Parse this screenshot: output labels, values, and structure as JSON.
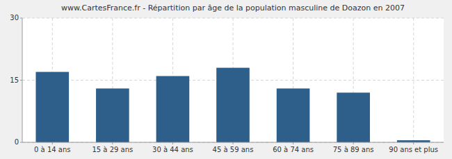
{
  "chart_data": {
    "type": "bar",
    "title": "www.CartesFrance.fr - Répartition par âge de la population masculine de Doazon en 2007",
    "categories": [
      "0 à 14 ans",
      "15 à 29 ans",
      "30 à 44 ans",
      "45 à 59 ans",
      "60 à 74 ans",
      "75 à 89 ans",
      "90 ans et plus"
    ],
    "values": [
      17,
      13,
      16,
      18,
      13,
      12,
      0.5
    ],
    "color": "#2e5f8a",
    "ylim": [
      0,
      30
    ],
    "yticks": [
      0,
      15,
      30
    ],
    "grid": true
  }
}
